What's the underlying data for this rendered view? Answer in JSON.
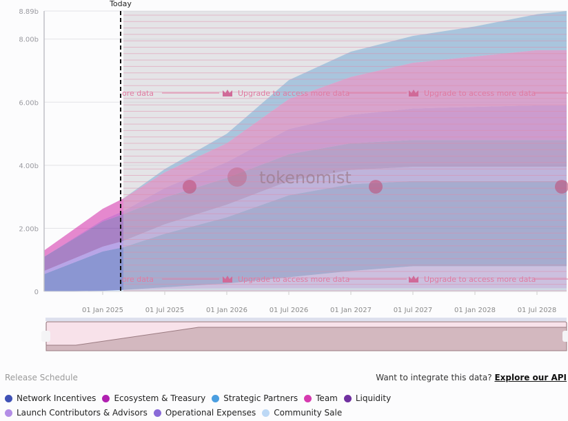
{
  "chart_data": {
    "type": "area",
    "stacked": true,
    "x": [
      "2024-07",
      "2025-01",
      "2025-03",
      "2025-07",
      "2026-01",
      "2026-07",
      "2027-01",
      "2027-07",
      "2028-01",
      "2028-07",
      "2028-10"
    ],
    "x_ticks": [
      "01 Jan 2025",
      "01 Jul 2025",
      "01 Jan 2026",
      "01 Jul 2026",
      "01 Jan 2027",
      "01 Jul 2027",
      "01 Jan 2028",
      "01 Jul 2028"
    ],
    "y_ticks": [
      "0",
      "2.00b",
      "4.00b",
      "6.00b",
      "8.00b",
      "8.89b"
    ],
    "ylim": [
      0,
      8.89
    ],
    "yunit": "b",
    "grid": true,
    "today_label": "Today",
    "today": "2025-02",
    "locked_from": "2025-03",
    "series": [
      {
        "name": "Community Sale",
        "color": "#bcd8f5",
        "values": [
          0,
          0.02,
          0.05,
          0.08,
          0.1,
          0.1,
          0.1,
          0.1,
          0.1,
          0.1,
          0.1
        ]
      },
      {
        "name": "Launch Contributors & Advisors",
        "color": "#b38ee6",
        "values": [
          0,
          0,
          0,
          0.05,
          0.15,
          0.35,
          0.55,
          0.7,
          0.7,
          0.7,
          0.7
        ]
      },
      {
        "name": "Network Incentives",
        "color": "#3f51b5",
        "values": [
          0.55,
          1.25,
          1.35,
          1.7,
          2.1,
          2.6,
          2.75,
          2.7,
          2.7,
          2.7,
          2.7
        ]
      },
      {
        "name": "Operational Expenses",
        "color": "#8a6ad8",
        "values": [
          0.1,
          0.15,
          0.2,
          0.3,
          0.4,
          0.45,
          0.45,
          0.45,
          0.45,
          0.45,
          0.45
        ]
      },
      {
        "name": "Liquidity",
        "color": "#7030a0",
        "values": [
          0.45,
          0.8,
          0.85,
          0.85,
          0.85,
          0.85,
          0.85,
          0.85,
          0.85,
          0.85,
          0.85
        ]
      },
      {
        "name": "Ecosystem & Treasury",
        "color": "#b020b0",
        "values": [
          0,
          0.05,
          0.1,
          0.3,
          0.5,
          0.8,
          0.9,
          1.0,
          1.05,
          1.1,
          1.1
        ]
      },
      {
        "name": "Team",
        "color": "#d63aaf",
        "values": [
          0.2,
          0.35,
          0.4,
          0.5,
          0.6,
          0.95,
          1.2,
          1.45,
          1.6,
          1.75,
          1.75
        ]
      },
      {
        "name": "Strategic Partners",
        "color": "#4a9ee0",
        "values": [
          0,
          0,
          0,
          0.1,
          0.3,
          0.6,
          0.8,
          0.85,
          0.95,
          1.14,
          1.24
        ]
      }
    ]
  },
  "watermark": {
    "upgrade_text": "Upgrade to access more data",
    "partial_text": "ore data",
    "logo_text": "tokenomist"
  },
  "footer": {
    "title": "Release Schedule",
    "api_prompt": "Want to integrate this data?",
    "api_link": "Explore our API"
  },
  "legend_rows": [
    [
      0,
      1,
      2,
      3,
      4
    ],
    [
      5,
      6,
      7
    ]
  ],
  "legend": [
    {
      "label": "Network Incentives",
      "color": "#3f51b5"
    },
    {
      "label": "Ecosystem & Treasury",
      "color": "#b020b0"
    },
    {
      "label": "Strategic Partners",
      "color": "#4a9ee0"
    },
    {
      "label": "Team",
      "color": "#d63aaf"
    },
    {
      "label": "Liquidity",
      "color": "#7030a0"
    },
    {
      "label": "Launch Contributors & Advisors",
      "color": "#b38ee6"
    },
    {
      "label": "Operational Expenses",
      "color": "#8a6ad8"
    },
    {
      "label": "Community Sale",
      "color": "#bcd8f5"
    }
  ]
}
